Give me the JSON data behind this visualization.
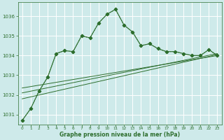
{
  "background_color": "#ceeaea",
  "grid_color": "#b8d8d8",
  "line_color": "#2d6e2d",
  "title": "Graphe pression niveau de la mer (hPa)",
  "xlim": [
    -0.5,
    23.5
  ],
  "ylim": [
    1030.5,
    1036.7
  ],
  "yticks": [
    1031,
    1032,
    1033,
    1034,
    1035,
    1036
  ],
  "xticks": [
    0,
    1,
    2,
    3,
    4,
    5,
    6,
    7,
    8,
    9,
    10,
    11,
    12,
    13,
    14,
    15,
    16,
    17,
    18,
    19,
    20,
    21,
    22,
    23
  ],
  "series_dotted": {
    "x": [
      0,
      1,
      2,
      3,
      4,
      5,
      6,
      7,
      8,
      9,
      10,
      11,
      12,
      13,
      14,
      15,
      16,
      17,
      18,
      19,
      20,
      21,
      22,
      23
    ],
    "y": [
      1030.7,
      1031.3,
      1032.2,
      1032.9,
      1034.1,
      1034.25,
      1034.2,
      1035.0,
      1034.9,
      1035.65,
      1036.1,
      1036.35,
      1035.55,
      1035.2,
      1034.5,
      1034.6,
      1034.35,
      1034.2,
      1034.2,
      1034.1,
      1034.0,
      1034.0,
      1034.3,
      1034.0
    ],
    "marker": "D",
    "markersize": 2.5,
    "linewidth": 0.8,
    "linestyle": "dotted"
  },
  "series_solid": {
    "x": [
      0,
      1,
      2,
      3,
      4,
      5,
      6,
      7,
      8,
      9,
      10,
      11,
      12,
      13,
      14,
      15,
      16,
      17,
      18,
      19,
      20,
      21,
      22,
      23
    ],
    "y": [
      1030.7,
      1031.3,
      1032.2,
      1032.9,
      1034.1,
      1034.25,
      1034.2,
      1035.0,
      1034.9,
      1035.65,
      1036.1,
      1036.35,
      1035.55,
      1035.2,
      1034.5,
      1034.6,
      1034.35,
      1034.2,
      1034.2,
      1034.1,
      1034.0,
      1034.0,
      1034.3,
      1034.0
    ],
    "marker": "D",
    "markersize": 2.5,
    "linewidth": 0.8,
    "linestyle": "solid"
  },
  "trend_lines": [
    {
      "x": [
        0,
        23
      ],
      "y": [
        1031.8,
        1034.05
      ]
    },
    {
      "x": [
        0,
        23
      ],
      "y": [
        1032.1,
        1034.1
      ]
    },
    {
      "x": [
        0,
        23
      ],
      "y": [
        1032.35,
        1034.0
      ]
    }
  ]
}
